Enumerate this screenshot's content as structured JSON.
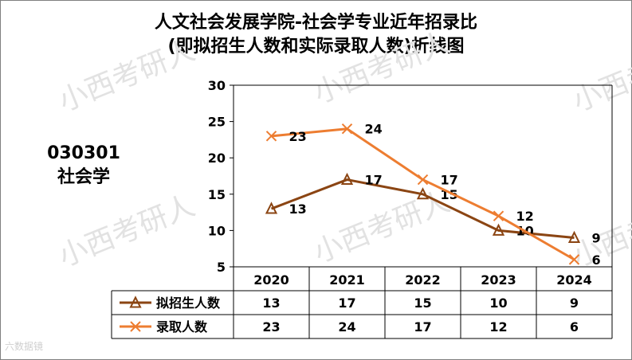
{
  "title_line1": "人文社会发展学院-社会学专业近年招录比",
  "title_line2": "(即拟招生人数和实际录取人数)折线图",
  "side_label_code": "030301",
  "side_label_name": "社会学",
  "watermark_text": "小西考研人",
  "corner_watermark": "六数据镜",
  "chart_data": {
    "type": "line",
    "categories": [
      "2020",
      "2021",
      "2022",
      "2023",
      "2024"
    ],
    "ylim": [
      5,
      30
    ],
    "yticks": [
      5,
      10,
      15,
      20,
      25,
      30
    ],
    "grid": false,
    "legend_position": "bottom-table",
    "series": [
      {
        "name": "拟招生人数",
        "values": [
          13,
          17,
          15,
          10,
          9
        ],
        "color": "#8B4513",
        "marker": "triangle"
      },
      {
        "name": "录取人数",
        "values": [
          23,
          24,
          17,
          12,
          6
        ],
        "color": "#ED7D31",
        "marker": "x"
      }
    ]
  }
}
